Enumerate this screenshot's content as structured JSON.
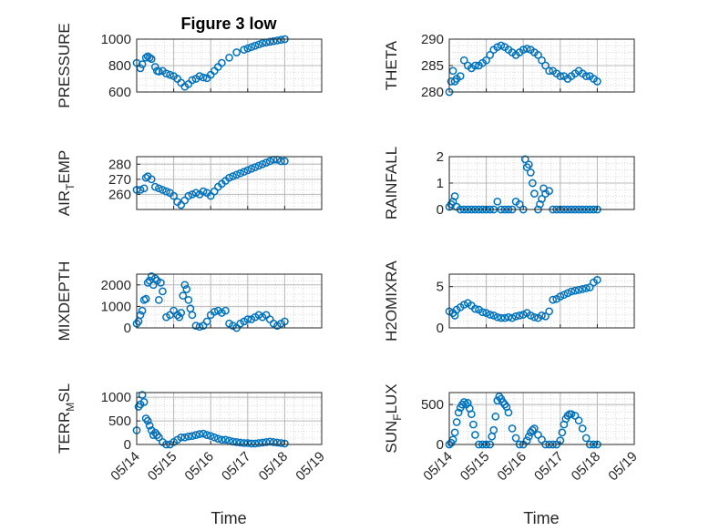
{
  "figure": {
    "title": "Figure 3 low",
    "xlabel": "Time",
    "colors": {
      "marker": "#0072BD",
      "axis": "#262626",
      "grid": "#b8b8b8",
      "minor_grid": "#d9d9d9"
    }
  },
  "chart_data": [
    {
      "type": "scatter",
      "ylabel": "PRESSURE",
      "title": "Figure 3 low",
      "ylim": [
        600,
        1000
      ],
      "yticks": [
        "600",
        "800",
        "1000"
      ],
      "xlim": [
        0,
        5
      ],
      "xticks": [
        "05/14",
        "05/15",
        "05/16",
        "05/17",
        "05/18",
        "05/19"
      ],
      "grid": true,
      "x": [
        0.0,
        0.1,
        0.15,
        0.25,
        0.3,
        0.35,
        0.4,
        0.5,
        0.55,
        0.6,
        0.7,
        0.8,
        0.9,
        1.0,
        1.1,
        1.2,
        1.3,
        1.4,
        1.5,
        1.6,
        1.7,
        1.8,
        1.9,
        2.0,
        2.1,
        2.2,
        2.3,
        2.5,
        2.7,
        2.9,
        3.0,
        3.1,
        3.2,
        3.3,
        3.4,
        3.5,
        3.6,
        3.7,
        3.8,
        3.9,
        4.0
      ],
      "y": [
        820,
        780,
        810,
        860,
        870,
        860,
        850,
        790,
        760,
        755,
        760,
        740,
        730,
        720,
        700,
        670,
        640,
        660,
        690,
        700,
        720,
        710,
        705,
        730,
        760,
        790,
        820,
        860,
        900,
        920,
        930,
        940,
        950,
        960,
        970,
        975,
        980,
        985,
        990,
        995,
        1000
      ]
    },
    {
      "type": "scatter",
      "ylabel": "THETA",
      "ylim": [
        280,
        290
      ],
      "yticks": [
        "280",
        "285",
        "290"
      ],
      "xlim": [
        0,
        5
      ],
      "xticks": [
        "05/14",
        "05/15",
        "05/16",
        "05/17",
        "05/18",
        "05/19"
      ],
      "grid": true,
      "x": [
        0.0,
        0.05,
        0.1,
        0.15,
        0.2,
        0.3,
        0.4,
        0.5,
        0.6,
        0.7,
        0.8,
        0.9,
        1.0,
        1.1,
        1.2,
        1.3,
        1.4,
        1.5,
        1.6,
        1.7,
        1.8,
        1.9,
        2.0,
        2.1,
        2.2,
        2.3,
        2.4,
        2.5,
        2.6,
        2.7,
        2.8,
        2.9,
        3.0,
        3.1,
        3.2,
        3.3,
        3.4,
        3.5,
        3.6,
        3.7,
        3.8,
        3.9,
        4.0
      ],
      "y": [
        280,
        282,
        284,
        282,
        282.5,
        283,
        286,
        285,
        284.5,
        285,
        285,
        285.5,
        286,
        287,
        288,
        288.5,
        288.8,
        288.5,
        288,
        287.5,
        287,
        287.5,
        288,
        288.2,
        288,
        287.5,
        287,
        286,
        285,
        284,
        284,
        283.5,
        283,
        283,
        282.5,
        283,
        283.5,
        284,
        283.5,
        283,
        283,
        282.5,
        282
      ]
    },
    {
      "type": "scatter",
      "ylabel": "AIR_TEMP",
      "ylabel_base": "AIR",
      "ylabel_sub": "T",
      "ylabel_rest": "EMP",
      "ylim": [
        250,
        285
      ],
      "yticks": [
        "260",
        "270",
        "280"
      ],
      "xlim": [
        0,
        5
      ],
      "xticks": [
        "05/14",
        "05/15",
        "05/16",
        "05/17",
        "05/18",
        "05/19"
      ],
      "grid": true,
      "x": [
        0.0,
        0.1,
        0.2,
        0.25,
        0.3,
        0.4,
        0.5,
        0.6,
        0.7,
        0.8,
        0.9,
        1.0,
        1.1,
        1.2,
        1.3,
        1.4,
        1.5,
        1.6,
        1.7,
        1.8,
        1.9,
        2.0,
        2.1,
        2.2,
        2.3,
        2.4,
        2.5,
        2.6,
        2.7,
        2.8,
        2.9,
        3.0,
        3.1,
        3.2,
        3.3,
        3.4,
        3.5,
        3.6,
        3.7,
        3.8,
        3.9,
        4.0
      ],
      "y": [
        263,
        263,
        264,
        271,
        272,
        270,
        265,
        264,
        263,
        262,
        261,
        259,
        255,
        253,
        256,
        259,
        260,
        261,
        260,
        262,
        261,
        259,
        262,
        265,
        267,
        269,
        271,
        272,
        273,
        274,
        275,
        276,
        277,
        278,
        279,
        280,
        281,
        282,
        283,
        283,
        282,
        282
      ]
    },
    {
      "type": "scatter",
      "ylabel": "RAINFALL",
      "ylim": [
        0,
        2
      ],
      "yticks": [
        "0",
        "1",
        "2"
      ],
      "xlim": [
        0,
        5
      ],
      "xticks": [
        "05/14",
        "05/15",
        "05/16",
        "05/17",
        "05/18",
        "05/19"
      ],
      "grid": true,
      "x": [
        0.0,
        0.05,
        0.1,
        0.15,
        0.2,
        0.3,
        0.4,
        0.5,
        0.6,
        0.7,
        0.8,
        0.9,
        1.0,
        1.1,
        1.2,
        1.3,
        1.4,
        1.5,
        1.6,
        1.7,
        1.8,
        1.9,
        2.0,
        2.05,
        2.1,
        2.15,
        2.2,
        2.25,
        2.3,
        2.4,
        2.45,
        2.5,
        2.55,
        2.6,
        2.7,
        2.8,
        2.9,
        3.0,
        3.1,
        3.2,
        3.3,
        3.4,
        3.5,
        3.6,
        3.7,
        3.8,
        3.9,
        4.0
      ],
      "y": [
        0.1,
        0.2,
        0.3,
        0.5,
        0.1,
        0.0,
        0.0,
        0.0,
        0.0,
        0.0,
        0.0,
        0.0,
        0.0,
        0.0,
        0.0,
        0.3,
        0.0,
        0.0,
        0.0,
        0.0,
        0.3,
        0.2,
        0.0,
        1.9,
        1.6,
        1.7,
        1.4,
        1.0,
        0.6,
        0.0,
        0.2,
        0.4,
        0.8,
        0.6,
        0.7,
        0.0,
        0.0,
        0.0,
        0.0,
        0.0,
        0.0,
        0.0,
        0.0,
        0.0,
        0.0,
        0.0,
        0.0,
        0.0
      ]
    },
    {
      "type": "scatter",
      "ylabel": "MIXDEPTH",
      "ylim": [
        0,
        2500
      ],
      "yticks": [
        "0",
        "1000",
        "2000"
      ],
      "xlim": [
        0,
        5
      ],
      "xticks": [
        "05/14",
        "05/15",
        "05/16",
        "05/17",
        "05/18",
        "05/19"
      ],
      "grid": true,
      "x": [
        0.0,
        0.05,
        0.1,
        0.15,
        0.2,
        0.25,
        0.3,
        0.35,
        0.4,
        0.45,
        0.5,
        0.55,
        0.6,
        0.65,
        0.7,
        0.8,
        0.9,
        1.0,
        1.1,
        1.15,
        1.2,
        1.25,
        1.3,
        1.35,
        1.4,
        1.45,
        1.5,
        1.6,
        1.7,
        1.8,
        1.9,
        2.0,
        2.1,
        2.2,
        2.3,
        2.4,
        2.5,
        2.6,
        2.7,
        2.8,
        2.9,
        3.0,
        3.1,
        3.2,
        3.3,
        3.4,
        3.5,
        3.6,
        3.7,
        3.8,
        3.9,
        4.0
      ],
      "y": [
        200,
        300,
        600,
        800,
        1300,
        1350,
        2100,
        2200,
        2400,
        2000,
        2300,
        2200,
        1300,
        2100,
        1700,
        500,
        600,
        800,
        600,
        500,
        700,
        1500,
        2000,
        1800,
        1300,
        900,
        600,
        100,
        50,
        100,
        300,
        600,
        750,
        800,
        700,
        800,
        200,
        100,
        0,
        200,
        300,
        400,
        400,
        500,
        600,
        500,
        600,
        400,
        200,
        100,
        200,
        300
      ]
    },
    {
      "type": "scatter",
      "ylabel": "H2OMIXRA",
      "ylim": [
        0,
        6.5
      ],
      "yticks": [
        "0",
        "5"
      ],
      "xlim": [
        0,
        5
      ],
      "xticks": [
        "05/14",
        "05/15",
        "05/16",
        "05/17",
        "05/18",
        "05/19"
      ],
      "grid": true,
      "x": [
        0.0,
        0.1,
        0.15,
        0.2,
        0.3,
        0.4,
        0.5,
        0.6,
        0.7,
        0.8,
        0.9,
        1.0,
        1.1,
        1.2,
        1.3,
        1.4,
        1.5,
        1.6,
        1.7,
        1.8,
        1.9,
        2.0,
        2.1,
        2.2,
        2.3,
        2.4,
        2.5,
        2.6,
        2.7,
        2.8,
        2.9,
        3.0,
        3.1,
        3.2,
        3.3,
        3.4,
        3.5,
        3.6,
        3.7,
        3.8,
        3.9,
        4.0
      ],
      "y": [
        2.0,
        1.8,
        1.5,
        2.2,
        2.5,
        2.8,
        3.0,
        2.7,
        2.3,
        2.2,
        1.9,
        1.8,
        1.6,
        1.5,
        1.3,
        1.2,
        1.2,
        1.3,
        1.2,
        1.4,
        1.5,
        1.6,
        1.8,
        1.5,
        1.3,
        1.2,
        1.5,
        1.4,
        2.0,
        3.4,
        3.5,
        3.8,
        4.0,
        4.2,
        4.4,
        4.5,
        4.6,
        4.7,
        4.8,
        4.9,
        5.5,
        5.8
      ]
    },
    {
      "type": "scatter",
      "ylabel": "TERR_MSL",
      "ylabel_base": "TERR",
      "ylabel_sub": "M",
      "ylabel_rest": "SL",
      "ylim": [
        0,
        1100
      ],
      "yticks": [
        "0",
        "500",
        "1000"
      ],
      "xlim": [
        0,
        5
      ],
      "xticks": [
        "05/14",
        "05/15",
        "05/16",
        "05/17",
        "05/18",
        "05/19"
      ],
      "grid": true,
      "x": [
        0.0,
        0.05,
        0.1,
        0.15,
        0.2,
        0.25,
        0.3,
        0.35,
        0.4,
        0.45,
        0.5,
        0.55,
        0.6,
        0.7,
        0.8,
        0.9,
        1.0,
        1.1,
        1.2,
        1.3,
        1.4,
        1.5,
        1.6,
        1.7,
        1.8,
        1.9,
        2.0,
        2.1,
        2.2,
        2.3,
        2.4,
        2.5,
        2.6,
        2.7,
        2.8,
        2.9,
        3.0,
        3.1,
        3.2,
        3.3,
        3.4,
        3.5,
        3.6,
        3.7,
        3.8,
        3.9,
        4.0
      ],
      "y": [
        300,
        800,
        850,
        1050,
        900,
        550,
        500,
        400,
        300,
        200,
        250,
        200,
        150,
        50,
        0,
        0,
        50,
        100,
        150,
        150,
        170,
        180,
        200,
        220,
        230,
        200,
        180,
        150,
        120,
        100,
        100,
        80,
        60,
        50,
        40,
        30,
        30,
        20,
        20,
        30,
        40,
        50,
        60,
        50,
        40,
        30,
        20
      ]
    },
    {
      "type": "scatter",
      "ylabel": "SUN_FLUX",
      "ylabel_base": "SUN",
      "ylabel_sub": "F",
      "ylabel_rest": "LUX",
      "ylim": [
        0,
        650
      ],
      "yticks": [
        "0",
        "500"
      ],
      "xlim": [
        0,
        5
      ],
      "xticks": [
        "05/14",
        "05/15",
        "05/16",
        "05/17",
        "05/18",
        "05/19"
      ],
      "grid": true,
      "x": [
        0.0,
        0.05,
        0.1,
        0.15,
        0.2,
        0.25,
        0.3,
        0.35,
        0.4,
        0.45,
        0.5,
        0.55,
        0.6,
        0.65,
        0.7,
        0.8,
        0.9,
        1.0,
        1.1,
        1.15,
        1.2,
        1.25,
        1.3,
        1.35,
        1.4,
        1.45,
        1.5,
        1.55,
        1.6,
        1.7,
        1.8,
        1.9,
        2.0,
        2.1,
        2.15,
        2.2,
        2.25,
        2.3,
        2.4,
        2.5,
        2.6,
        2.7,
        2.8,
        2.9,
        3.0,
        3.05,
        3.1,
        3.15,
        3.2,
        3.25,
        3.3,
        3.4,
        3.5,
        3.6,
        3.7,
        3.8,
        3.9,
        4.0
      ],
      "y": [
        0,
        20,
        60,
        150,
        280,
        400,
        460,
        500,
        530,
        500,
        520,
        450,
        380,
        250,
        120,
        0,
        0,
        0,
        0,
        100,
        180,
        350,
        550,
        600,
        570,
        530,
        500,
        470,
        400,
        200,
        80,
        0,
        0,
        50,
        100,
        150,
        180,
        200,
        120,
        60,
        0,
        0,
        0,
        0,
        50,
        150,
        250,
        320,
        360,
        380,
        380,
        360,
        300,
        200,
        80,
        0,
        0,
        0
      ]
    }
  ]
}
